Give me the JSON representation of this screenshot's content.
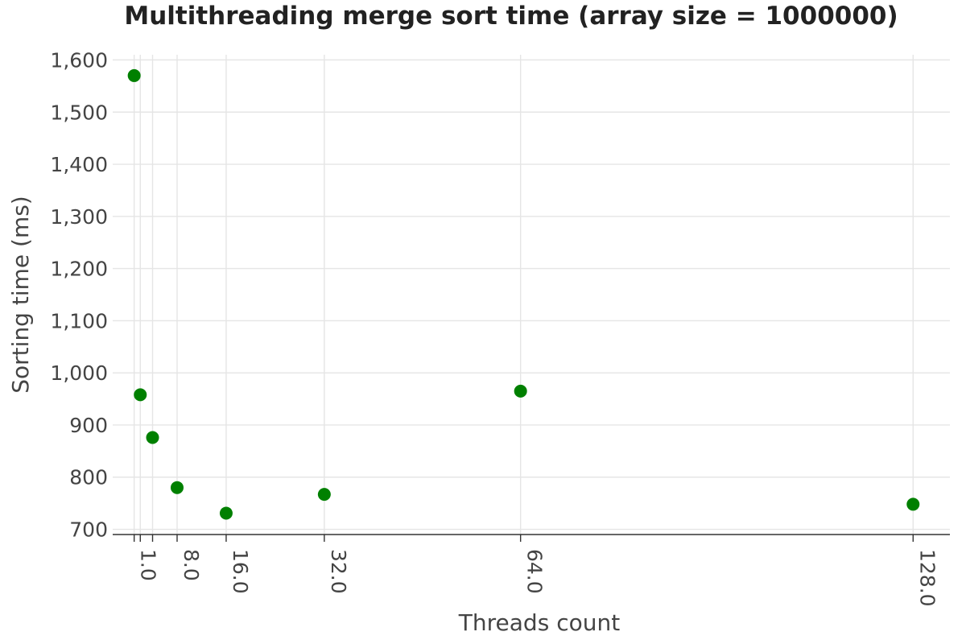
{
  "chart_data": {
    "type": "scatter",
    "title": "Multithreading merge sort time (array size = 1000000)",
    "xlabel": "Threads count",
    "ylabel": "Sorting time (ms)",
    "x_ticks": [
      1,
      2,
      4,
      8,
      16,
      32,
      64,
      128
    ],
    "x_tick_labels": [
      "1.0",
      "",
      "",
      "8.0",
      "16.0",
      "32.0",
      "64.0",
      "128.0"
    ],
    "y_ticks": [
      700,
      800,
      900,
      1000,
      1100,
      1200,
      1300,
      1400,
      1500,
      1600
    ],
    "y_tick_labels": [
      "700",
      "800",
      "900",
      "1,000",
      "1,100",
      "1,200",
      "1,300",
      "1,400",
      "1,500",
      "1,600"
    ],
    "xlim": [
      -2.5,
      134
    ],
    "ylim": [
      690,
      1610
    ],
    "grid": true,
    "marker_color": "#008000",
    "series": [
      {
        "x": [
          1,
          2,
          4,
          8,
          16,
          32,
          64,
          128
        ],
        "y": [
          1570,
          958,
          876,
          780,
          731,
          767,
          965,
          748
        ]
      }
    ]
  }
}
